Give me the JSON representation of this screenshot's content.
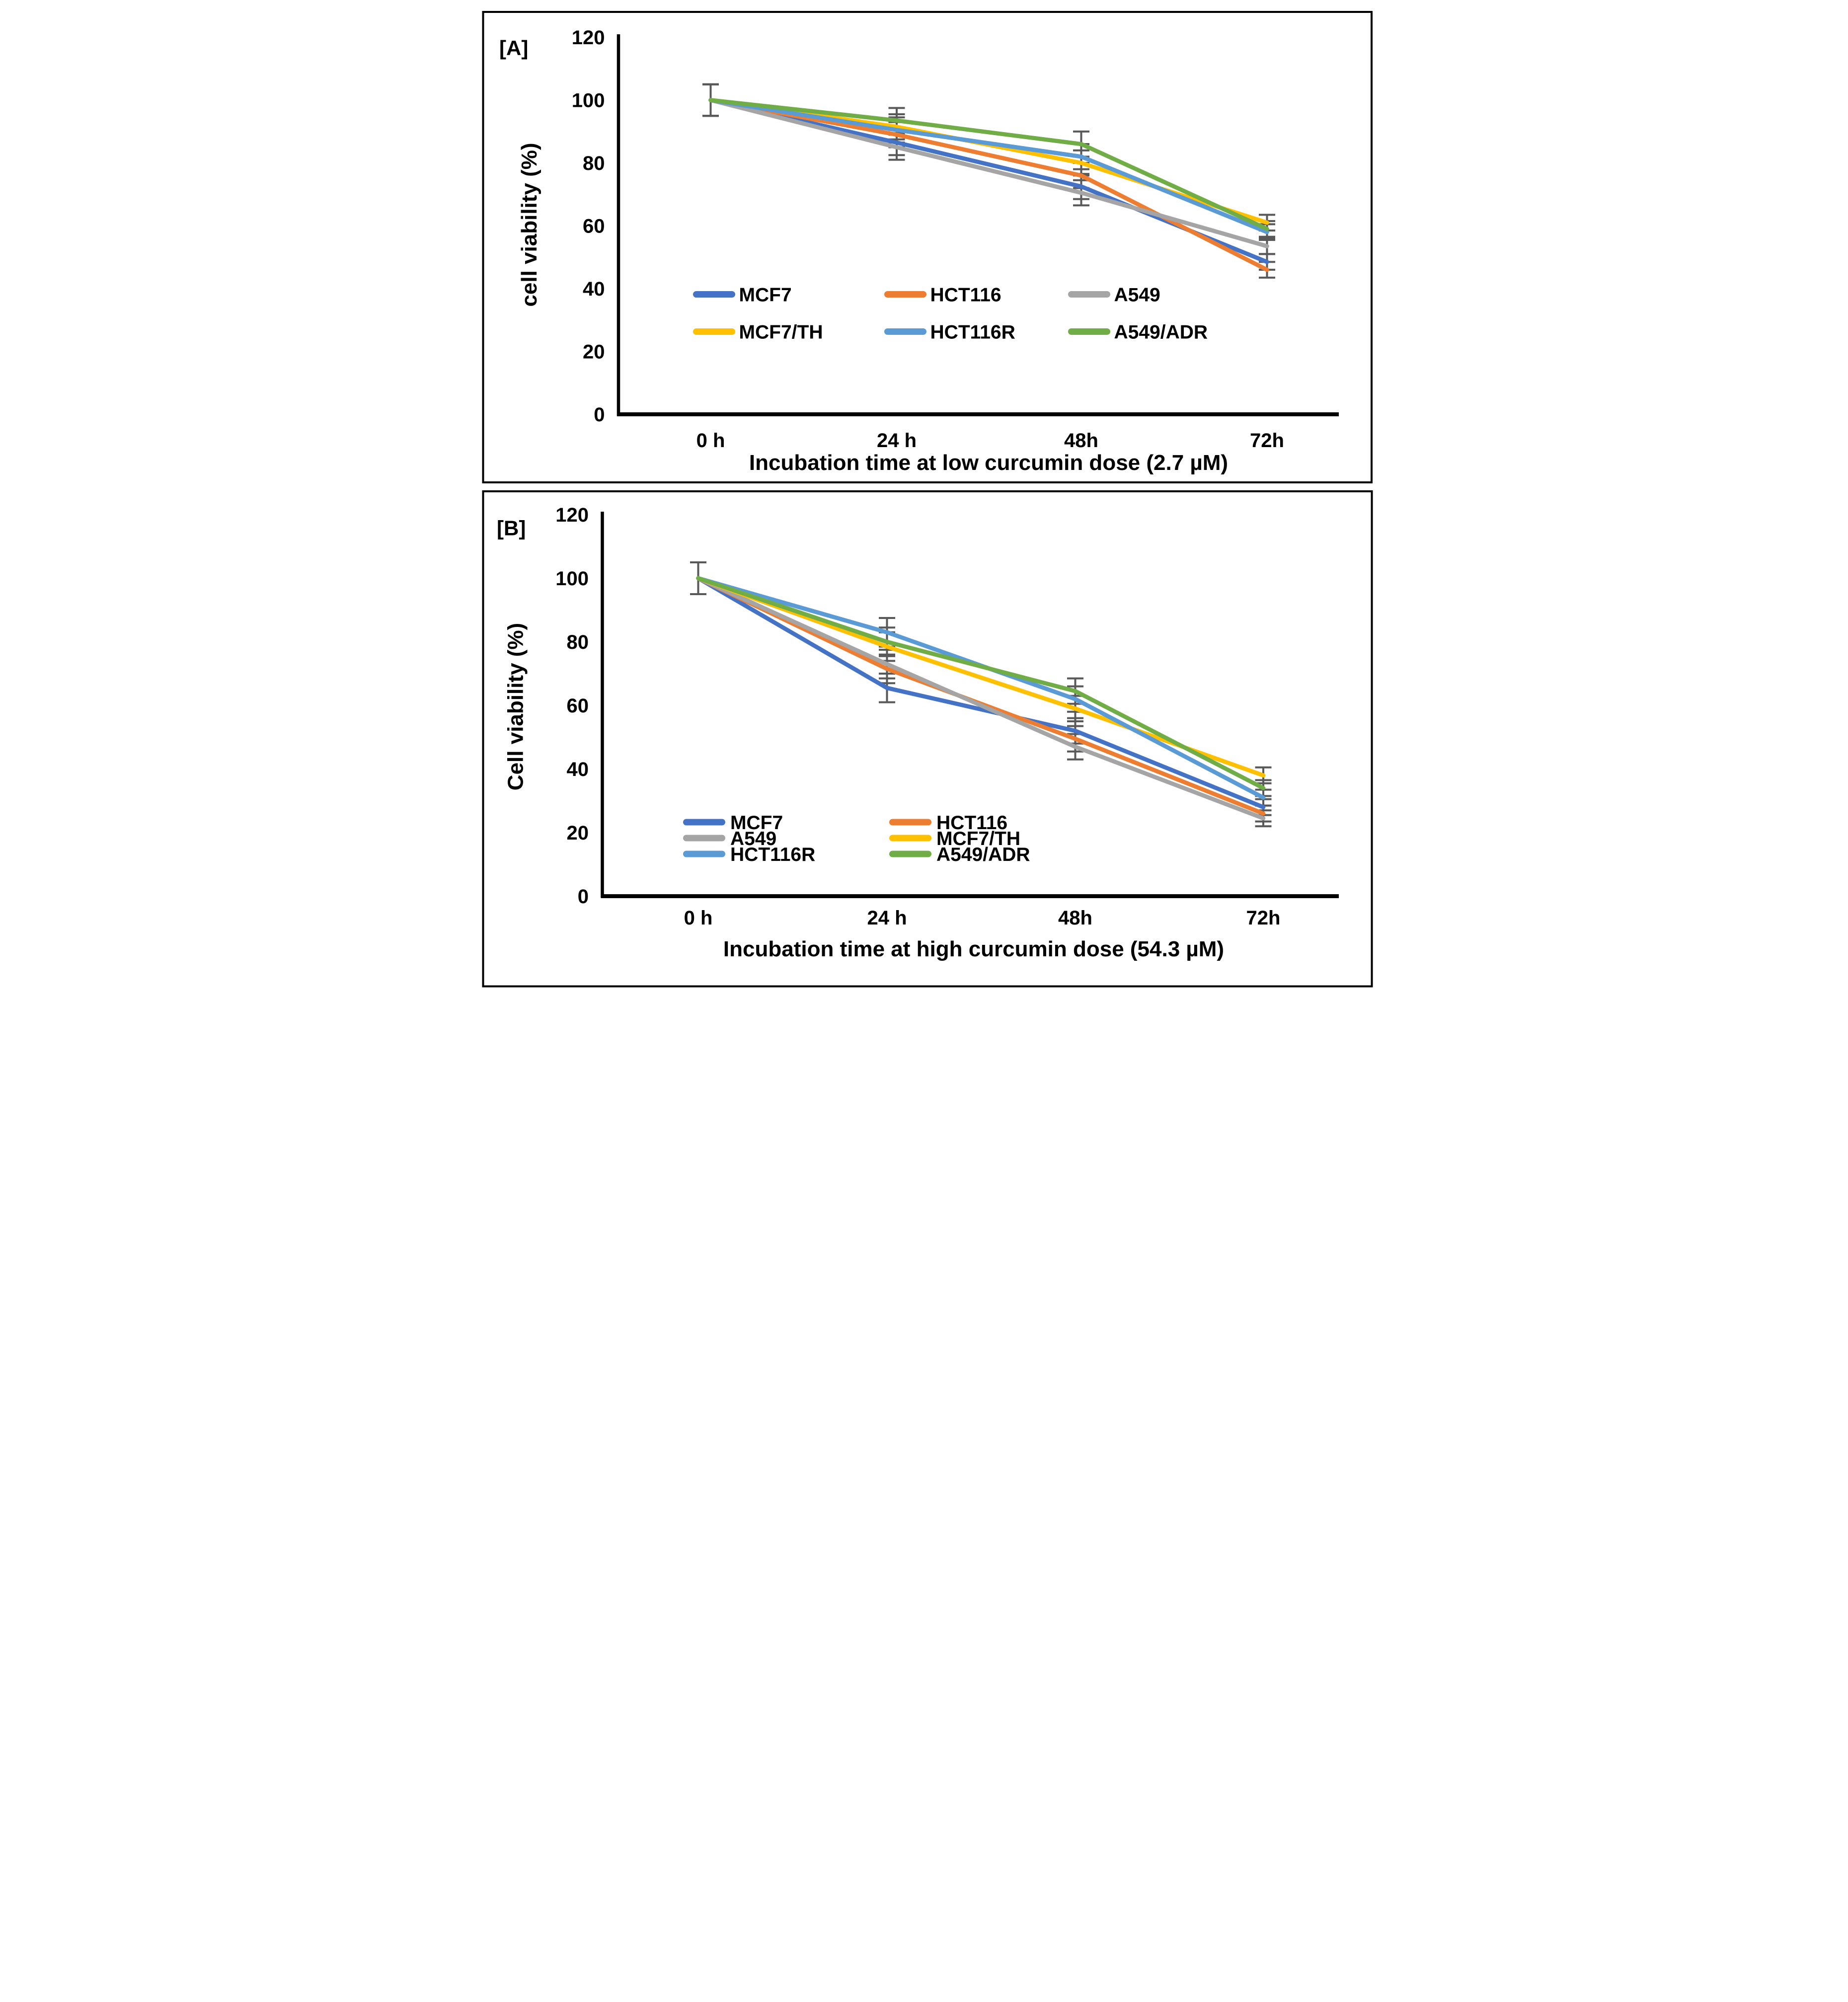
{
  "figure": {
    "description_visible_text_only": "Two-panel line chart of cell viability versus incubation time",
    "background": "#FFFFFF",
    "border_color": "#000000"
  },
  "chart_data": [
    {
      "type": "line",
      "panel_label": "[A]",
      "title": "Incubation time at low curcumin dose (2.7  µM)",
      "ylabel": "cell viability (%)",
      "categories": [
        "0 h",
        "24 h",
        "48h",
        "72h"
      ],
      "ylim": [
        0,
        120
      ],
      "y_ticks": [
        "120",
        "100",
        "80",
        "60",
        "40",
        "20",
        "0"
      ],
      "grid": false,
      "legend_position": "inside-center, 2 rows x 3 columns",
      "error_bar_color": "#595959",
      "error": [
        5,
        4,
        4,
        2.5
      ],
      "series": [
        {
          "name": "MCF7",
          "color": "#4472C4",
          "values": [
            100,
            86.5,
            72.5,
            48.5
          ]
        },
        {
          "name": "HCT116",
          "color": "#ED7D31",
          "values": [
            100,
            89,
            76,
            46
          ]
        },
        {
          "name": "A549",
          "color": "#A5A5A5",
          "values": [
            100,
            85,
            70.5,
            53.5
          ]
        },
        {
          "name": "MCF7/TH",
          "color": "#FFC000",
          "values": [
            100,
            91.5,
            80,
            61
          ]
        },
        {
          "name": "HCT116R",
          "color": "#5B9BD5",
          "values": [
            100,
            90.5,
            82,
            58
          ]
        },
        {
          "name": "A549/ADR",
          "color": "#70AD47",
          "values": [
            100,
            93.5,
            86,
            59
          ]
        }
      ]
    },
    {
      "type": "line",
      "panel_label": "[B]",
      "title": "Incubation time at high curcumin dose (54.3  µM)",
      "ylabel": "Cell viability (%)",
      "categories": [
        "0 h",
        "24 h",
        "48h",
        "72h"
      ],
      "ylim": [
        0,
        120
      ],
      "y_ticks": [
        "120",
        "100",
        "80",
        "60",
        "40",
        "20",
        "0"
      ],
      "grid": false,
      "legend_position": "inside-lower-left, 3 rows x 2 columns",
      "error_bar_color": "#595959",
      "error": [
        5,
        4.5,
        4,
        2.5
      ],
      "series": [
        {
          "name": "MCF7",
          "color": "#4472C4",
          "values": [
            100,
            65.5,
            52,
            28
          ]
        },
        {
          "name": "HCT116",
          "color": "#ED7D31",
          "values": [
            100,
            71.5,
            49.5,
            26
          ]
        },
        {
          "name": "A549",
          "color": "#A5A5A5",
          "values": [
            100,
            73,
            47,
            24.5
          ]
        },
        {
          "name": "MCF7/TH",
          "color": "#FFC000",
          "values": [
            100,
            78.5,
            59,
            38
          ]
        },
        {
          "name": "HCT116R",
          "color": "#5B9BD5",
          "values": [
            100,
            83,
            62,
            31
          ]
        },
        {
          "name": "A549/ADR",
          "color": "#70AD47",
          "values": [
            100,
            80,
            64.5,
            34
          ]
        }
      ]
    }
  ]
}
